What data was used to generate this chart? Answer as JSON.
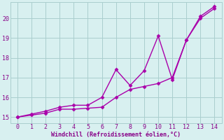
{
  "xlabel": "Windchill (Refroidissement éolien,°C)",
  "line1_x": [
    0,
    1,
    2,
    3,
    4,
    5,
    6,
    7,
    8,
    9,
    10,
    11,
    12,
    13,
    14
  ],
  "line1_y": [
    15.0,
    15.1,
    15.2,
    15.4,
    15.4,
    15.45,
    15.5,
    16.0,
    16.4,
    16.55,
    16.7,
    17.0,
    18.9,
    20.0,
    20.5
  ],
  "line2_x": [
    0,
    1,
    2,
    3,
    4,
    5,
    6,
    7,
    8,
    9,
    10,
    11,
    12,
    13,
    14
  ],
  "line2_y": [
    15.0,
    15.15,
    15.3,
    15.5,
    15.6,
    15.6,
    16.0,
    17.4,
    16.6,
    17.35,
    19.1,
    16.9,
    18.9,
    20.1,
    20.6
  ],
  "line_color": "#aa00aa",
  "bg_color": "#d8f0f0",
  "grid_color": "#aacece",
  "text_color": "#880088",
  "xlim": [
    -0.5,
    14.5
  ],
  "ylim": [
    14.7,
    20.8
  ],
  "yticks": [
    15,
    16,
    17,
    18,
    19,
    20
  ],
  "xticks": [
    0,
    1,
    2,
    3,
    4,
    5,
    6,
    7,
    8,
    9,
    10,
    11,
    12,
    13,
    14
  ],
  "marker": "D",
  "markersize": 2.5,
  "linewidth": 1.0
}
